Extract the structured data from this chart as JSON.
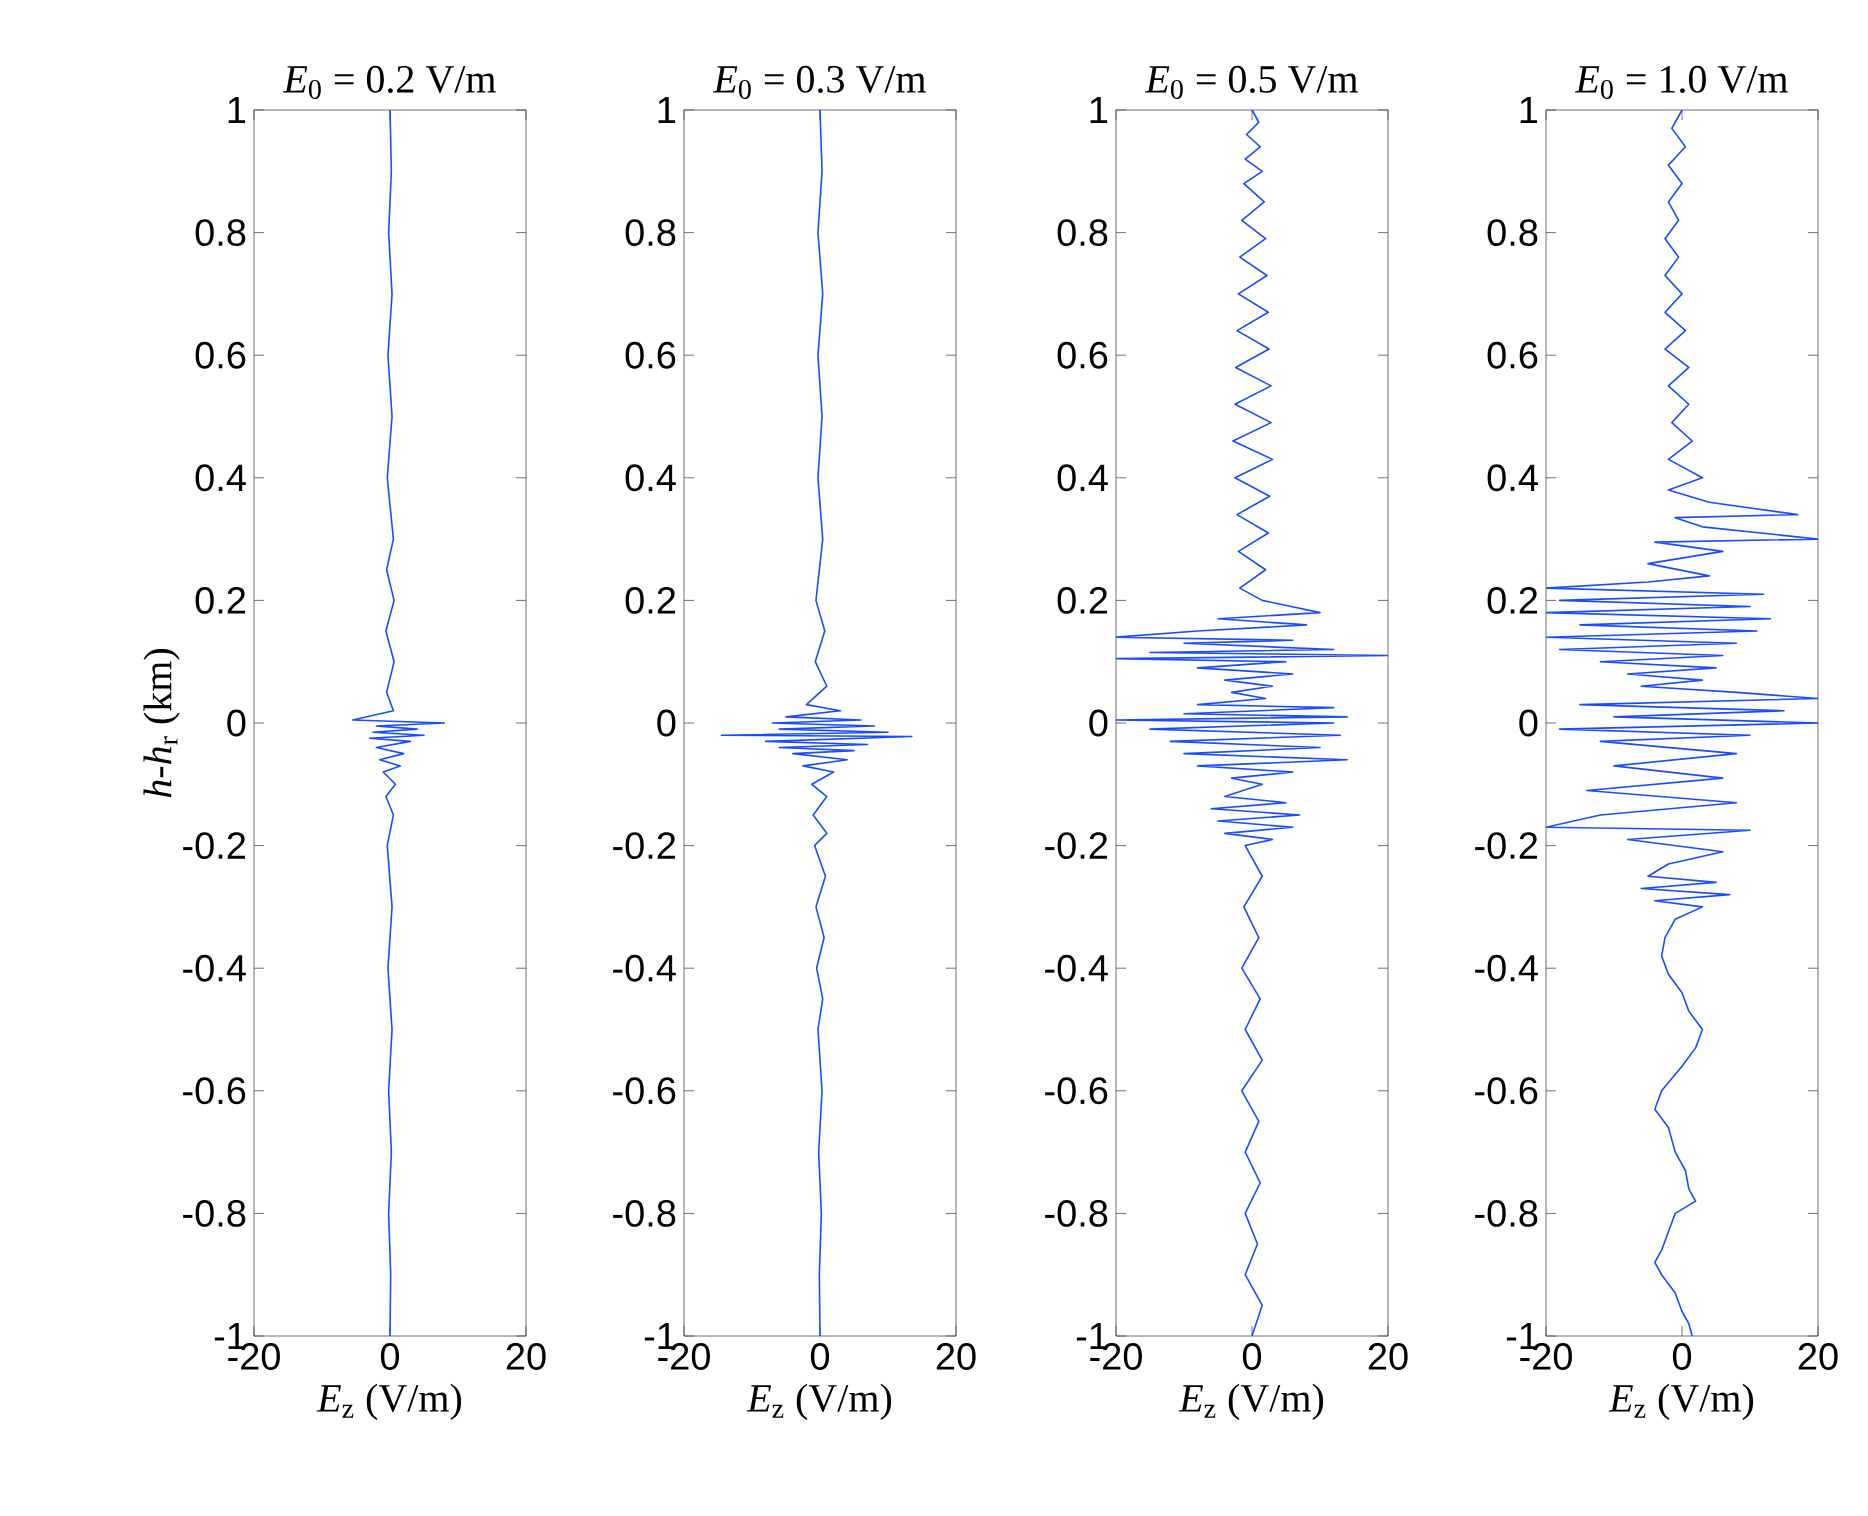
{
  "chart_data": [
    {
      "type": "line",
      "title": "*E*$_{0}$ = 0.2 V/m",
      "xlabel": "*E*$_{z}$ (V/m)",
      "ylabel": "*h*-*h*$_{r}$ (km)",
      "xlim": [
        -20,
        20
      ],
      "xticks": [
        -20,
        0,
        20
      ],
      "ylim": [
        -1,
        1
      ],
      "yticks": [
        -1,
        -0.8,
        -0.6,
        -0.4,
        -0.2,
        0,
        0.2,
        0.4,
        0.6,
        0.8,
        1
      ],
      "series": [
        {
          "color": "#1a4cff",
          "x": [
            0,
            0.2,
            -0.2,
            0.3,
            -0.3,
            0.3,
            -0.4,
            0.5,
            -0.5,
            0.6,
            -0.6,
            0.6,
            -0.5,
            0.5,
            -5.5,
            8,
            -2,
            4,
            -2.5,
            5,
            -3,
            3,
            -2,
            2,
            -1.5,
            1.5,
            -1,
            0.8,
            -0.6,
            0.5,
            -0.4,
            0.3,
            -0.3,
            0.3,
            -0.2,
            0.2,
            -0.2,
            0.1,
            0
          ],
          "values": [
            1,
            0.9,
            0.8,
            0.7,
            0.6,
            0.5,
            0.4,
            0.3,
            0.25,
            0.2,
            0.15,
            0.1,
            0.05,
            0.02,
            0.005,
            0,
            -0.005,
            -0.01,
            -0.015,
            -0.02,
            -0.025,
            -0.03,
            -0.04,
            -0.05,
            -0.06,
            -0.07,
            -0.08,
            -0.1,
            -0.12,
            -0.15,
            -0.2,
            -0.3,
            -0.4,
            -0.5,
            -0.6,
            -0.7,
            -0.8,
            -0.9,
            -1
          ]
        }
      ]
    },
    {
      "type": "line",
      "title": "*E*$_{0}$ = 0.3 V/m",
      "xlabel": "*E*$_{z}$ (V/m)",
      "xlim": [
        -20,
        20
      ],
      "xticks": [
        -20,
        0,
        20
      ],
      "ylim": [
        -1,
        1
      ],
      "yticks": [
        -1,
        -0.8,
        -0.6,
        -0.4,
        -0.2,
        0,
        0.2,
        0.4,
        0.6,
        0.8,
        1
      ],
      "series": [
        {
          "color": "#1a4cff",
          "x": [
            0,
            0.3,
            -0.3,
            0.4,
            -0.3,
            0.3,
            -0.3,
            0.4,
            -0.6,
            0.7,
            -0.7,
            1,
            -2,
            3,
            -5,
            6,
            -7,
            8,
            -6,
            10,
            -14.5,
            13.5,
            -8,
            7,
            -6,
            5,
            -4,
            4,
            -2.5,
            2,
            -1.2,
            1,
            -1,
            1,
            -0.8,
            0.8,
            -0.6,
            0.6,
            -0.5,
            0.4,
            -0.3,
            0.3,
            -0.2,
            0.2,
            -0.1,
            0
          ],
          "values": [
            1,
            0.9,
            0.8,
            0.7,
            0.6,
            0.5,
            0.4,
            0.3,
            0.2,
            0.15,
            0.1,
            0.06,
            0.03,
            0.02,
            0.01,
            0.005,
            0,
            -0.005,
            -0.01,
            -0.015,
            -0.02,
            -0.022,
            -0.03,
            -0.035,
            -0.04,
            -0.045,
            -0.05,
            -0.06,
            -0.07,
            -0.08,
            -0.1,
            -0.12,
            -0.15,
            -0.18,
            -0.2,
            -0.25,
            -0.3,
            -0.35,
            -0.4,
            -0.45,
            -0.5,
            -0.6,
            -0.7,
            -0.8,
            -0.9,
            -1
          ]
        }
      ]
    },
    {
      "type": "line",
      "title": "*E*$_{0}$ = 0.5 V/m",
      "xlabel": "*E*$_{z}$ (V/m)",
      "xlim": [
        -20,
        20
      ],
      "xticks": [
        -20,
        0,
        20
      ],
      "ylim": [
        -1,
        1
      ],
      "yticks": [
        -1,
        -0.8,
        -0.6,
        -0.4,
        -0.2,
        0,
        0.2,
        0.4,
        0.6,
        0.8,
        1
      ],
      "series": [
        {
          "color": "#1a4cff",
          "x": [
            0,
            1,
            -0.8,
            1.2,
            -1,
            1.5,
            -1.2,
            1.8,
            -1.5,
            2,
            -1.8,
            2.2,
            -2,
            2.4,
            -2.2,
            2.5,
            -2.4,
            2.8,
            -2.5,
            2.8,
            -2.8,
            3,
            -2.5,
            2.6,
            -2.2,
            2.4,
            -2,
            2,
            -1.8,
            1.5,
            10,
            -5,
            8,
            -8,
            -20,
            6,
            -10,
            12,
            -15,
            20,
            -20,
            5,
            -8,
            6,
            -4,
            3,
            -3,
            2,
            -8,
            12,
            -10,
            14,
            -20,
            12,
            -15,
            13,
            -12,
            10,
            -10,
            14,
            -8,
            6,
            -3,
            1.5,
            -4,
            5,
            -6,
            7,
            -5,
            6,
            -4,
            3,
            -1,
            1.5,
            -1.2,
            1,
            -1.5,
            1.2,
            -1,
            1.5,
            -1.5,
            1,
            -1,
            1.2,
            -1,
            0.8,
            -1,
            1.5,
            0
          ],
          "values": [
            1,
            0.98,
            0.96,
            0.94,
            0.92,
            0.9,
            0.88,
            0.85,
            0.82,
            0.79,
            0.76,
            0.73,
            0.7,
            0.67,
            0.64,
            0.61,
            0.58,
            0.55,
            0.52,
            0.49,
            0.46,
            0.43,
            0.4,
            0.37,
            0.34,
            0.31,
            0.28,
            0.25,
            0.22,
            0.2,
            0.18,
            0.17,
            0.16,
            0.15,
            0.14,
            0.135,
            0.13,
            0.12,
            0.115,
            0.11,
            0.105,
            0.1,
            0.09,
            0.08,
            0.07,
            0.06,
            0.05,
            0.04,
            0.03,
            0.025,
            0.015,
            0.01,
            0.005,
            0,
            -0.01,
            -0.02,
            -0.03,
            -0.04,
            -0.05,
            -0.06,
            -0.07,
            -0.08,
            -0.09,
            -0.1,
            -0.12,
            -0.13,
            -0.14,
            -0.15,
            -0.16,
            -0.17,
            -0.18,
            -0.19,
            -0.2,
            -0.25,
            -0.3,
            -0.35,
            -0.4,
            -0.45,
            -0.5,
            -0.55,
            -0.6,
            -0.65,
            -0.7,
            -0.75,
            -0.8,
            -0.85,
            -0.9,
            -0.95,
            -1
          ]
        }
      ]
    },
    {
      "type": "line",
      "title": "*E*$_{0}$ = 1.0 V/m",
      "xlabel": "*E*$_{z}$ (V/m)",
      "xlim": [
        -20,
        20
      ],
      "xticks": [
        -20,
        0,
        20
      ],
      "ylim": [
        -1,
        1
      ],
      "yticks": [
        -1,
        -0.8,
        -0.6,
        -0.4,
        -0.2,
        0,
        0.2,
        0.4,
        0.6,
        0.8,
        1
      ],
      "series": [
        {
          "color": "#1a4cff",
          "x": [
            0,
            -1.5,
            0.5,
            -2,
            0,
            -2,
            -0.5,
            -2.5,
            -0.5,
            -2.5,
            0,
            -2.5,
            0.5,
            -2.5,
            1,
            -2,
            1,
            -1.5,
            1.5,
            -2,
            3,
            -2,
            4,
            17,
            -1,
            3,
            20,
            -4,
            6,
            -5,
            4,
            -5,
            -20,
            12,
            -18,
            10,
            -20,
            13,
            -15,
            11,
            -20,
            8,
            -18,
            6,
            -12,
            5,
            -8,
            3,
            -6,
            8,
            20,
            -15,
            15,
            -10,
            20,
            -18,
            10,
            -12,
            8,
            -10,
            6,
            -14,
            8,
            -12,
            -20,
            10,
            -8,
            6,
            -2,
            -5,
            5,
            -6,
            7,
            -4,
            3,
            -1,
            -2.5,
            -3,
            -2,
            0,
            1,
            3,
            2,
            0,
            -3,
            -4,
            -2,
            -1,
            0.5,
            1,
            2,
            -1,
            -2,
            -3,
            -4,
            -3,
            -1,
            0,
            1,
            1.5
          ],
          "values": [
            1,
            0.97,
            0.94,
            0.91,
            0.88,
            0.85,
            0.82,
            0.79,
            0.76,
            0.73,
            0.7,
            0.67,
            0.64,
            0.61,
            0.58,
            0.55,
            0.52,
            0.49,
            0.46,
            0.43,
            0.4,
            0.38,
            0.36,
            0.34,
            0.335,
            0.32,
            0.3,
            0.295,
            0.28,
            0.26,
            0.24,
            0.23,
            0.22,
            0.21,
            0.2,
            0.19,
            0.18,
            0.17,
            0.16,
            0.15,
            0.14,
            0.13,
            0.12,
            0.11,
            0.1,
            0.09,
            0.08,
            0.07,
            0.06,
            0.05,
            0.04,
            0.03,
            0.02,
            0.01,
            0,
            -0.01,
            -0.02,
            -0.03,
            -0.05,
            -0.07,
            -0.09,
            -0.11,
            -0.13,
            -0.15,
            -0.17,
            -0.175,
            -0.19,
            -0.21,
            -0.23,
            -0.25,
            -0.26,
            -0.27,
            -0.28,
            -0.29,
            -0.3,
            -0.32,
            -0.35,
            -0.38,
            -0.41,
            -0.44,
            -0.47,
            -0.5,
            -0.53,
            -0.56,
            -0.6,
            -0.63,
            -0.66,
            -0.7,
            -0.73,
            -0.76,
            -0.78,
            -0.8,
            -0.83,
            -0.86,
            -0.88,
            -0.9,
            -0.93,
            -0.96,
            -0.98,
            -1
          ]
        }
      ]
    }
  ]
}
